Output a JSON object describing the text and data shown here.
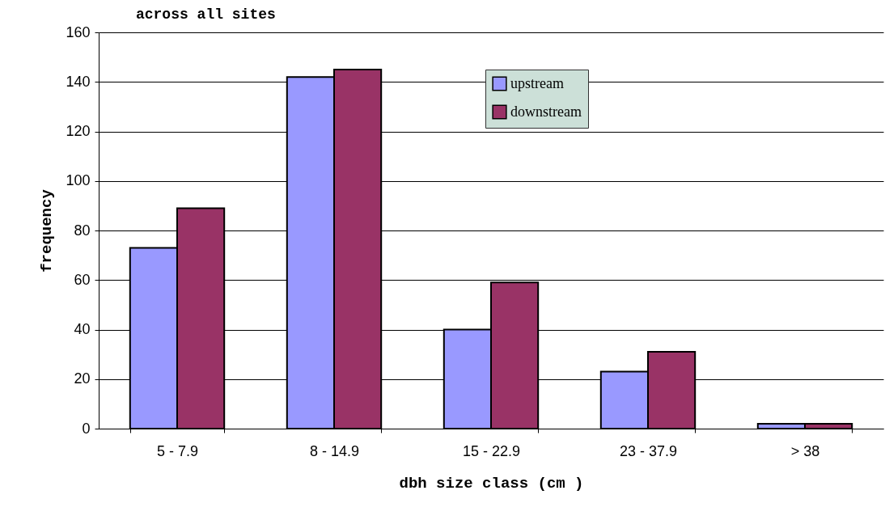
{
  "chart_data": {
    "type": "bar",
    "title": "across all sites",
    "xlabel": "dbh size class (cm )",
    "ylabel": "frequency",
    "categories": [
      "5 - 7.9",
      "8 - 14.9",
      "15 - 22.9",
      "23 - 37.9",
      "> 38"
    ],
    "series": [
      {
        "name": "upstream",
        "color": "#9999ff",
        "values": [
          73,
          142,
          40,
          23,
          2
        ]
      },
      {
        "name": "downstream",
        "color": "#993366",
        "values": [
          89,
          145,
          59,
          31,
          2
        ]
      }
    ],
    "ylim": [
      0,
      160
    ],
    "yticks": [
      0,
      20,
      40,
      60,
      80,
      100,
      120,
      140,
      160
    ],
    "grid": "y",
    "legend": "top right"
  }
}
